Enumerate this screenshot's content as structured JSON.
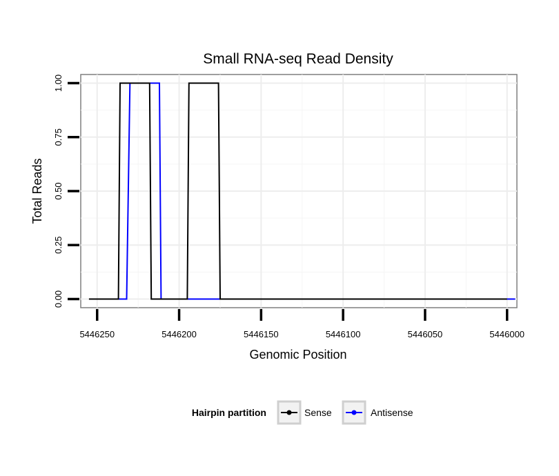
{
  "chart_data": {
    "type": "line",
    "title": "Small RNA-seq Read Density",
    "xlabel": "Genomic Position",
    "ylabel": "Total Reads",
    "x_reversed": true,
    "xlim": [
      5446260,
      5445994
    ],
    "ylim": [
      -0.04,
      1.04
    ],
    "xticks": [
      5446250,
      5446200,
      5446150,
      5446100,
      5446050,
      5446000
    ],
    "xtick_labels": [
      "5446250",
      "5446200",
      "5446150",
      "5446100",
      "5446050",
      "5446000"
    ],
    "yticks": [
      0,
      0.25,
      0.5,
      0.75,
      1
    ],
    "ytick_labels": [
      "0.00",
      "0.25",
      "0.50",
      "0.75",
      "1.00"
    ],
    "grid": true,
    "legend_position": "bottom",
    "legend_title": "Hairpin partition",
    "series": [
      {
        "name": "Antisense",
        "color": "#0000ff",
        "points": [
          [
            5446245,
            0
          ],
          [
            5446232,
            0
          ],
          [
            5446230,
            1
          ],
          [
            5446212,
            1
          ],
          [
            5446211,
            0
          ],
          [
            5445995,
            0
          ]
        ]
      },
      {
        "name": "Sense",
        "color": "#000000",
        "points": [
          [
            5446255,
            0
          ],
          [
            5446237,
            0
          ],
          [
            5446236,
            1
          ],
          [
            5446218,
            1
          ],
          [
            5446217,
            0
          ],
          [
            5446195,
            0
          ],
          [
            5446194,
            1
          ],
          [
            5446176,
            1
          ],
          [
            5446175,
            0
          ],
          [
            5446000,
            0
          ]
        ]
      }
    ]
  }
}
